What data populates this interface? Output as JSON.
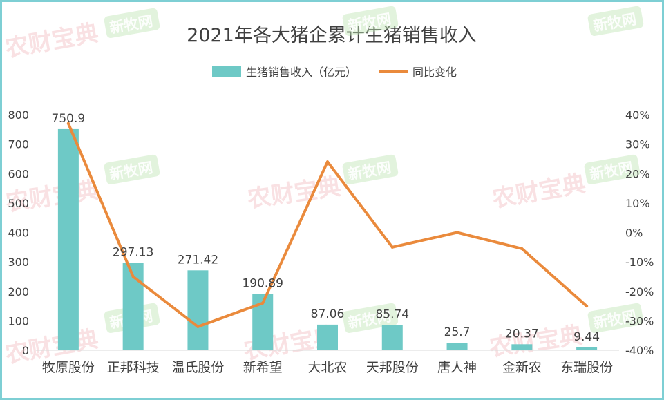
{
  "chart_data": {
    "type": "bar",
    "title": "2021年各大猪企累计生猪销售收入",
    "categories": [
      "牧原股份",
      "正邦科技",
      "温氏股份",
      "新希望",
      "大北农",
      "天邦股份",
      "唐人神",
      "金新农",
      "东瑞股份"
    ],
    "series": [
      {
        "name": "生猪销售收入（亿元）",
        "type": "bar",
        "values": [
          750.9,
          297.13,
          271.42,
          190.89,
          87.06,
          85.74,
          25.7,
          20.37,
          9.44
        ],
        "value_labels": [
          "750.9",
          "297.13",
          "271.42",
          "190.89",
          "87.06",
          "85.74",
          "25.7",
          "20.37",
          "9.44"
        ],
        "color": "#6ec9c6"
      },
      {
        "name": "同比变化",
        "type": "line",
        "axis": "right",
        "values": [
          0.37,
          -0.15,
          -0.32,
          -0.24,
          0.24,
          -0.05,
          0.0,
          -0.055,
          -0.25
        ],
        "color": "#ea8a3c"
      }
    ],
    "ylim": [
      0,
      800
    ],
    "y_ticks": [
      "0",
      "100",
      "200",
      "300",
      "400",
      "500",
      "600",
      "700",
      "800"
    ],
    "y2lim": [
      -0.4,
      0.4
    ],
    "y2_ticks": [
      "-40%",
      "-30%",
      "-20%",
      "-10%",
      "0%",
      "10%",
      "20%",
      "30%",
      "40%"
    ],
    "legend_position": "top-center",
    "grid": false
  },
  "watermarks": {
    "brand_a": "农财宝典",
    "brand_b": "新牧网"
  }
}
